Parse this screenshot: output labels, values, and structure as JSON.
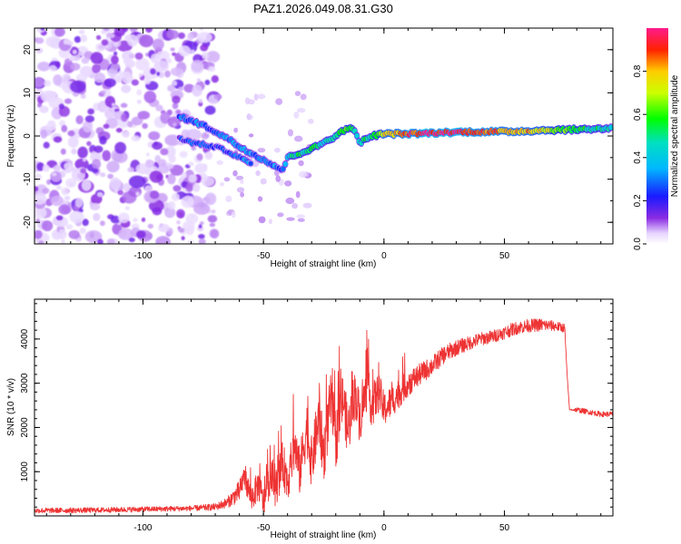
{
  "chart_data": [
    {
      "type": "heatmap",
      "title": "PAZ1.2026.049.08.31.G30",
      "xlabel": "Height of straight line (km)",
      "ylabel": "Frequency (Hz)",
      "xlim": [
        -145,
        95
      ],
      "ylim": [
        -25,
        25
      ],
      "xticks": [
        -100,
        -50,
        0,
        50
      ],
      "yticks": [
        -20,
        -10,
        0,
        10,
        20
      ],
      "colorbar": {
        "label": "Normalized spectral amplitude",
        "range": [
          0,
          1
        ],
        "ticks": [
          0.0,
          0.2,
          0.4,
          0.6,
          0.8
        ]
      },
      "noise_region_x": [
        -145,
        -70
      ],
      "ridge": {
        "x": [
          -85,
          -80,
          -75,
          -70,
          -65,
          -60,
          -55,
          -50,
          -45,
          -42,
          -40,
          -35,
          -30,
          -25,
          -20,
          -15,
          -12,
          -10,
          -5,
          0,
          10,
          20,
          30,
          40,
          50,
          60,
          70,
          80,
          95
        ],
        "f": [
          4.5,
          3.5,
          2.5,
          1.0,
          -0.5,
          -2.5,
          -4.0,
          -5.5,
          -7.0,
          -8.0,
          -5.0,
          -4.0,
          -3.0,
          -1.5,
          0.0,
          2.0,
          1.0,
          -1.5,
          0.0,
          0.5,
          0.5,
          0.7,
          0.9,
          1.0,
          1.0,
          1.2,
          1.4,
          1.5,
          1.8
        ],
        "amp": [
          0.25,
          0.3,
          0.3,
          0.25,
          0.3,
          0.35,
          0.3,
          0.35,
          0.3,
          0.25,
          0.45,
          0.5,
          0.55,
          0.45,
          0.55,
          0.6,
          0.45,
          0.5,
          0.55,
          0.75,
          0.9,
          0.95,
          0.95,
          0.9,
          0.85,
          0.8,
          0.7,
          0.55,
          0.45
        ]
      },
      "second_branch": {
        "x": [
          -85,
          -80,
          -75,
          -70,
          -65,
          -60,
          -55
        ],
        "f": [
          -0.5,
          -1.5,
          -2.0,
          -2.5,
          -3.5,
          -5.0,
          -6.5
        ],
        "amp": [
          0.2,
          0.25,
          0.25,
          0.2,
          0.25,
          0.3,
          0.3
        ]
      }
    },
    {
      "type": "line",
      "xlabel": "Height of straight line (km)",
      "ylabel": "SNR (10 * v/v)",
      "xlim": [
        -145,
        95
      ],
      "ylim": [
        0,
        4900
      ],
      "xticks": [
        -100,
        -50,
        0,
        50
      ],
      "yticks": [
        1000,
        2000,
        3000,
        4000
      ],
      "color": "#ee3333",
      "series": [
        {
          "name": "SNR",
          "x": [
            -145,
            -120,
            -100,
            -80,
            -70,
            -65,
            -60,
            -58,
            -55,
            -52,
            -50,
            -47,
            -45,
            -42,
            -40,
            -37,
            -35,
            -32,
            -30,
            -27,
            -25,
            -22,
            -20,
            -17,
            -15,
            -12,
            -10,
            -7,
            -5,
            -2,
            0,
            5,
            10,
            15,
            20,
            25,
            30,
            35,
            40,
            45,
            50,
            55,
            60,
            65,
            70,
            75,
            76,
            77,
            80,
            85,
            90,
            95
          ],
          "y": [
            120,
            130,
            150,
            170,
            200,
            300,
            550,
            900,
            400,
            700,
            300,
            900,
            600,
            1200,
            800,
            1600,
            1000,
            2000,
            1200,
            2200,
            1400,
            2600,
            1700,
            2700,
            1900,
            2800,
            2200,
            2900,
            2500,
            2800,
            2400,
            2700,
            3000,
            3200,
            3400,
            3650,
            3800,
            3900,
            4000,
            4050,
            4150,
            4250,
            4300,
            4320,
            4300,
            4250,
            3200,
            2400,
            2400,
            2350,
            2300,
            2300
          ],
          "noise": [
            60,
            60,
            60,
            60,
            80,
            120,
            250,
            250,
            300,
            350,
            350,
            400,
            400,
            500,
            500,
            550,
            550,
            600,
            600,
            650,
            650,
            650,
            650,
            600,
            600,
            550,
            550,
            500,
            500,
            450,
            400,
            350,
            300,
            250,
            220,
            200,
            180,
            160,
            150,
            150,
            150,
            150,
            150,
            150,
            120,
            100,
            0,
            0,
            60,
            60,
            60,
            60
          ]
        }
      ]
    }
  ]
}
